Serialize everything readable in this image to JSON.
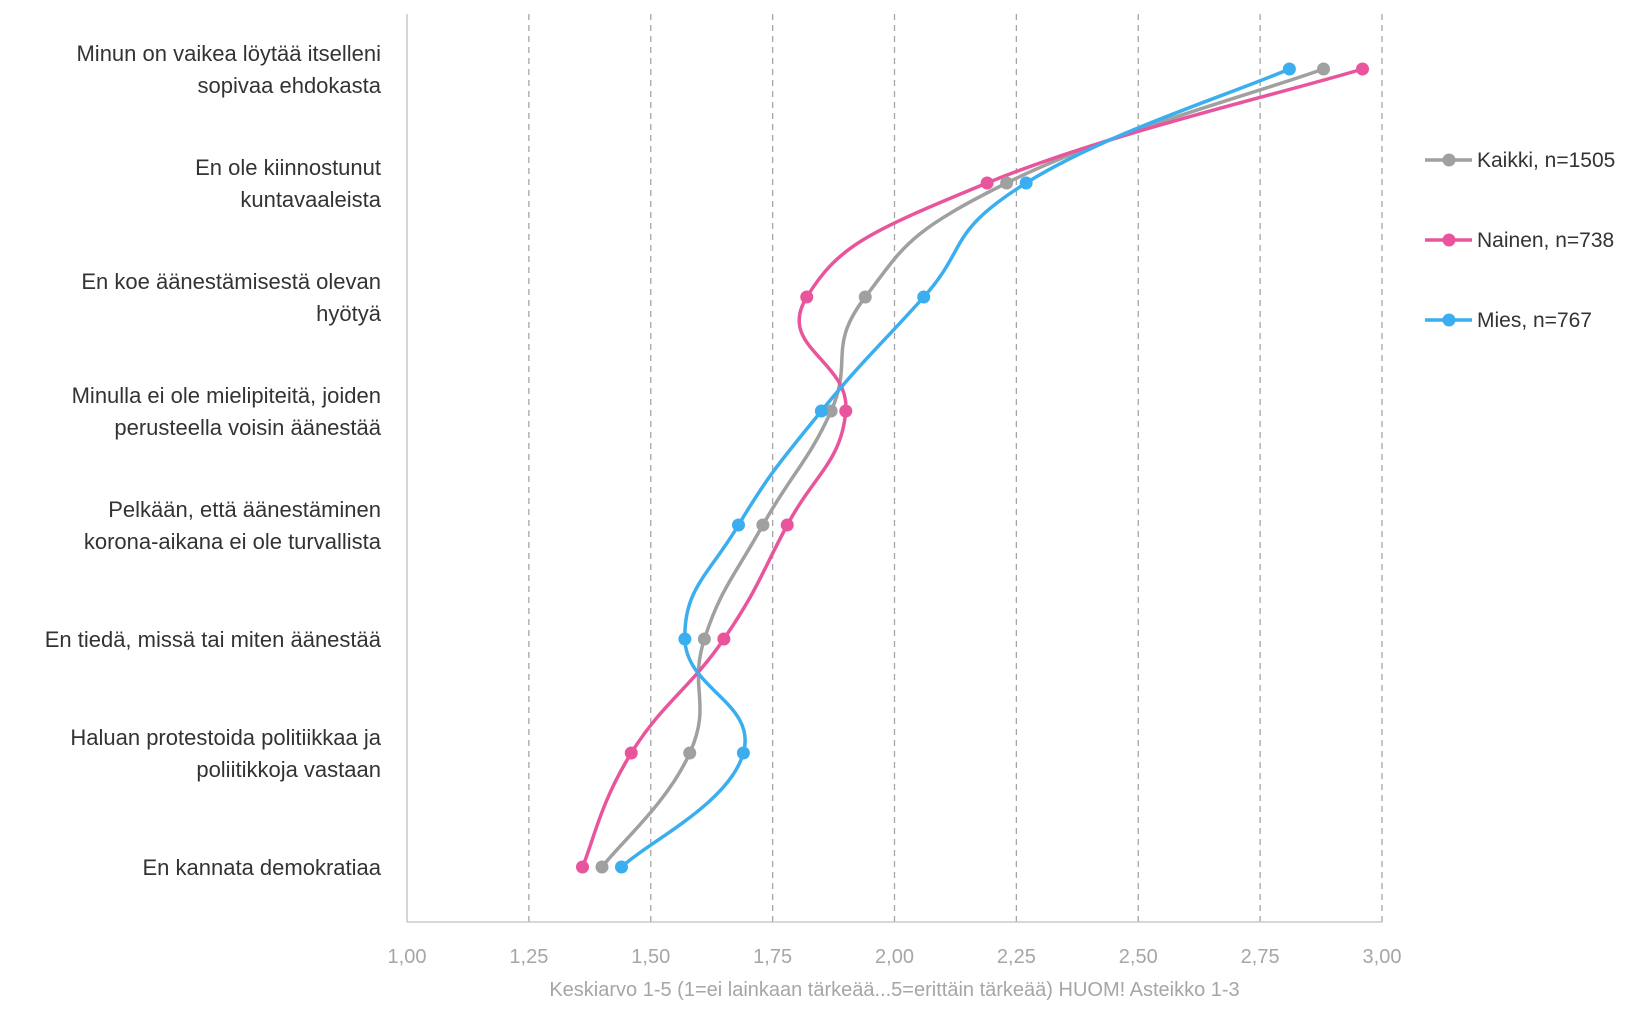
{
  "chart_data": {
    "type": "line",
    "orientation": "horizontal",
    "categories": [
      [
        "Minun on vaikea löytää itselleni",
        "sopivaa ehdokasta"
      ],
      [
        "En ole kiinnostunut",
        "kuntavaaleista"
      ],
      [
        "En koe äänestämisestä olevan",
        "hyötyä"
      ],
      [
        "Minulla ei ole mielipiteitä, joiden",
        "perusteella voisin äänestää"
      ],
      [
        "Pelkään, että äänestäminen",
        "korona-aikana ei ole turvallista"
      ],
      [
        "En tiedä, missä tai miten äänestää"
      ],
      [
        "Haluan protestoida politiikkaa ja",
        "poliitikkoja vastaan"
      ],
      [
        "En kannata demokratiaa"
      ]
    ],
    "series": [
      {
        "name": "Kaikki, n=1505",
        "color": "#a0a0a0",
        "values": [
          2.88,
          2.23,
          1.94,
          1.87,
          1.73,
          1.61,
          1.58,
          1.4
        ]
      },
      {
        "name": "Nainen, n=738",
        "color": "#e8559c",
        "values": [
          2.96,
          2.19,
          1.82,
          1.9,
          1.78,
          1.65,
          1.46,
          1.36
        ]
      },
      {
        "name": "Mies, n=767",
        "color": "#3aaeee",
        "values": [
          2.81,
          2.27,
          2.06,
          1.85,
          1.68,
          1.57,
          1.69,
          1.44
        ]
      }
    ],
    "xlim": [
      1.0,
      3.0
    ],
    "xticks": [
      "1,00",
      "1,25",
      "1,50",
      "1,75",
      "2,00",
      "2,25",
      "2,50",
      "2,75",
      "3,00"
    ],
    "xtick_values": [
      1.0,
      1.25,
      1.5,
      1.75,
      2.0,
      2.25,
      2.5,
      2.75,
      3.0
    ],
    "xlabel": "Keskiarvo 1-5 (1=ei lainkaan tärkeää...5=erittäin tärkeää) HUOM! Asteikko 1-3",
    "grid": "vertical dashed",
    "smooth": true,
    "legend": "right"
  }
}
